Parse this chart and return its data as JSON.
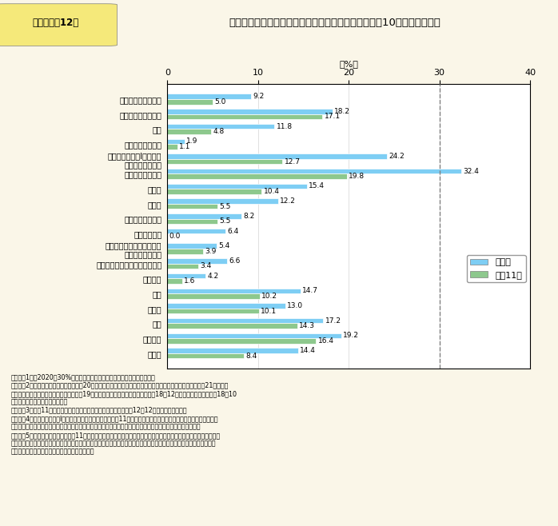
{
  "title": "第１－特－12図　各分野における「指導的地位」に女性が占める割合（10年前との比較）",
  "title_box_text": "第１－特－12図",
  "title_main_text": "各分野における「指導的地位」に女性が占める割合（10年前との比較）",
  "categories": [
    "国会議員（衆議院）",
    "国会議員（参議院）",
    "大臣",
    "国家公務員管理職",
    "国家公務員採用Ⅰ種試験の\n事務系区分採用者",
    "国の審議会等委員",
    "裁判官",
    "検察官",
    "都道府県議会議員",
    "都道府県知事",
    "都道府県における本庁課長\n相当職以上の職員",
    "民間企業の管理職（課長相当）",
    "農業委員",
    "記者",
    "研究者",
    "医師",
    "歯科医師",
    "弁護士"
  ],
  "recent_values": [
    9.2,
    18.2,
    11.8,
    1.9,
    24.2,
    32.4,
    15.4,
    12.2,
    8.2,
    6.4,
    5.4,
    6.6,
    4.2,
    14.7,
    13.0,
    17.2,
    19.2,
    14.4
  ],
  "h11_values": [
    5.0,
    17.1,
    4.8,
    1.1,
    12.7,
    19.8,
    10.4,
    5.5,
    5.5,
    0.0,
    3.9,
    3.4,
    1.6,
    10.2,
    10.1,
    14.3,
    16.4,
    8.4
  ],
  "recent_color": "#7ECEF4",
  "h11_color": "#8DC88D",
  "legend_recent": "直近値",
  "legend_h11": "平成11年",
  "xlabel": "（%）",
  "xlim": [
    0,
    40
  ],
  "xticks": [
    0,
    10,
    20,
    30,
    40
  ],
  "dashed_line_x": 30,
  "background_color": "#FAF6E8",
  "title_box_color": "#F5E97A",
  "notes_text": "（備考）1．「2020年30%」の目標のフォローアップのための指標」より。\n　　　　2．直近値に関しては、原則平成20年のデータ。国会議員（衆・参）、大臣、都道府県知事については21年５月、\n　　　　　　国家公務員管理職については19年１月，医師及び歯科医師については18年12月，農業委員については18年10\n　　　　　　月のデータを使用。\n　　　　3．平成11年のデータのうち、医師及び歯科医師については12年12月のデータを使用。\n　　　　4．国家公務員採用Ⅰ種試験事務系区分の採用者の平成11年のデータは、同区分に合格して採用された者（独立\n　　　　　　行政法人に採用された者も含む。）のうち、防衛庁、国会職員に採用された者を除いた数である。\n　　　　5．国家公務員管理職の平成11年のデータは、一般職給与法の行政職俸給表（一）及び指定職俸給表適用者に占\n　　　　　　める割合であり、直近値はそれらに防衛省職員（行政職俸給表（一）、指定職俸給表及び防衛参事官等俸給\n　　　　　　表適用者）が加わったものである。"
}
